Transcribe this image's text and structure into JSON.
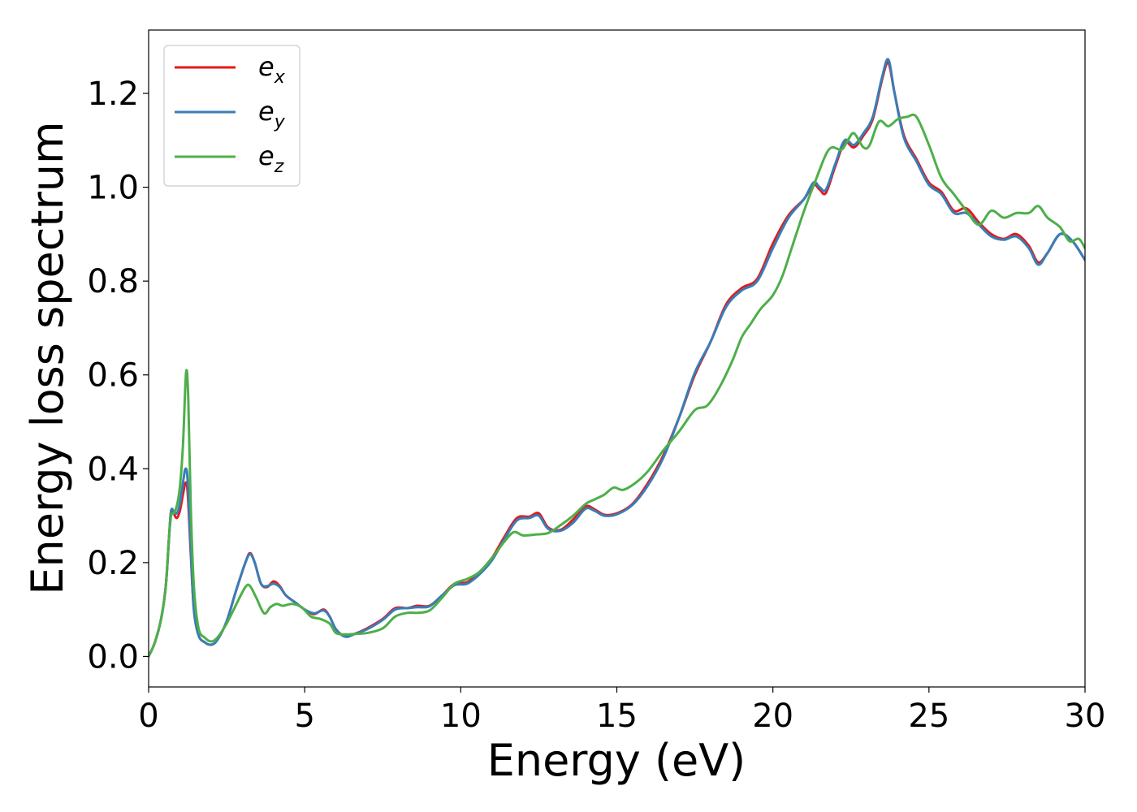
{
  "chart_data": {
    "type": "line",
    "title": "",
    "xlabel": "Energy (eV)",
    "ylabel": "Energy loss spectrum",
    "xlim": [
      0,
      30
    ],
    "ylim": [
      -0.065,
      1.335
    ],
    "xticks": [
      0,
      5,
      10,
      15,
      20,
      25,
      30
    ],
    "xtick_labels": [
      "0",
      "5",
      "10",
      "15",
      "20",
      "25",
      "30"
    ],
    "yticks": [
      0.0,
      0.2,
      0.4,
      0.6,
      0.8,
      1.0,
      1.2
    ],
    "ytick_labels": [
      "0.0",
      "0.2",
      "0.4",
      "0.6",
      "0.8",
      "1.0",
      "1.2"
    ],
    "grid": false,
    "legend_position": "top-left",
    "series": [
      {
        "name": "e_x",
        "legend_base": "e",
        "legend_sub": "x",
        "color": "#e41a1c",
        "points": [
          [
            0.0,
            0.0
          ],
          [
            0.2,
            0.03
          ],
          [
            0.4,
            0.08
          ],
          [
            0.55,
            0.15
          ],
          [
            0.65,
            0.25
          ],
          [
            0.72,
            0.31
          ],
          [
            0.8,
            0.305
          ],
          [
            0.9,
            0.295
          ],
          [
            1.0,
            0.31
          ],
          [
            1.1,
            0.345
          ],
          [
            1.18,
            0.37
          ],
          [
            1.25,
            0.35
          ],
          [
            1.35,
            0.22
          ],
          [
            1.45,
            0.1
          ],
          [
            1.6,
            0.045
          ],
          [
            1.8,
            0.03
          ],
          [
            2.0,
            0.025
          ],
          [
            2.2,
            0.035
          ],
          [
            2.5,
            0.075
          ],
          [
            2.8,
            0.14
          ],
          [
            3.1,
            0.2
          ],
          [
            3.25,
            0.22
          ],
          [
            3.4,
            0.2
          ],
          [
            3.6,
            0.155
          ],
          [
            3.8,
            0.148
          ],
          [
            4.0,
            0.16
          ],
          [
            4.2,
            0.15
          ],
          [
            4.4,
            0.13
          ],
          [
            4.7,
            0.115
          ],
          [
            5.0,
            0.1
          ],
          [
            5.3,
            0.09
          ],
          [
            5.6,
            0.1
          ],
          [
            5.8,
            0.085
          ],
          [
            6.0,
            0.058
          ],
          [
            6.3,
            0.043
          ],
          [
            6.6,
            0.048
          ],
          [
            7.0,
            0.06
          ],
          [
            7.5,
            0.08
          ],
          [
            7.9,
            0.103
          ],
          [
            8.3,
            0.103
          ],
          [
            8.6,
            0.108
          ],
          [
            9.0,
            0.108
          ],
          [
            9.4,
            0.13
          ],
          [
            9.8,
            0.155
          ],
          [
            10.2,
            0.158
          ],
          [
            10.6,
            0.18
          ],
          [
            11.0,
            0.21
          ],
          [
            11.4,
            0.255
          ],
          [
            11.8,
            0.295
          ],
          [
            12.2,
            0.298
          ],
          [
            12.5,
            0.305
          ],
          [
            12.8,
            0.275
          ],
          [
            13.2,
            0.27
          ],
          [
            13.6,
            0.292
          ],
          [
            14.0,
            0.32
          ],
          [
            14.3,
            0.313
          ],
          [
            14.6,
            0.302
          ],
          [
            15.0,
            0.305
          ],
          [
            15.5,
            0.325
          ],
          [
            16.0,
            0.37
          ],
          [
            16.5,
            0.43
          ],
          [
            17.0,
            0.51
          ],
          [
            17.5,
            0.6
          ],
          [
            18.0,
            0.67
          ],
          [
            18.5,
            0.75
          ],
          [
            19.0,
            0.785
          ],
          [
            19.5,
            0.805
          ],
          [
            20.0,
            0.88
          ],
          [
            20.5,
            0.94
          ],
          [
            21.0,
            0.975
          ],
          [
            21.3,
            1.005
          ],
          [
            21.5,
            0.995
          ],
          [
            21.7,
            0.988
          ],
          [
            22.0,
            1.045
          ],
          [
            22.3,
            1.095
          ],
          [
            22.6,
            1.085
          ],
          [
            22.9,
            1.11
          ],
          [
            23.2,
            1.145
          ],
          [
            23.5,
            1.23
          ],
          [
            23.7,
            1.265
          ],
          [
            23.9,
            1.2
          ],
          [
            24.2,
            1.11
          ],
          [
            24.6,
            1.06
          ],
          [
            25.0,
            1.01
          ],
          [
            25.4,
            0.99
          ],
          [
            25.8,
            0.95
          ],
          [
            26.2,
            0.955
          ],
          [
            26.6,
            0.925
          ],
          [
            27.0,
            0.9
          ],
          [
            27.4,
            0.89
          ],
          [
            27.8,
            0.9
          ],
          [
            28.2,
            0.875
          ],
          [
            28.5,
            0.84
          ],
          [
            28.8,
            0.86
          ],
          [
            29.2,
            0.9
          ],
          [
            29.6,
            0.885
          ],
          [
            30.0,
            0.845
          ]
        ]
      },
      {
        "name": "e_y",
        "legend_base": "e",
        "legend_sub": "y",
        "color": "#377eb8",
        "points": [
          [
            0.0,
            0.0
          ],
          [
            0.2,
            0.03
          ],
          [
            0.4,
            0.08
          ],
          [
            0.55,
            0.15
          ],
          [
            0.65,
            0.25
          ],
          [
            0.72,
            0.31
          ],
          [
            0.8,
            0.31
          ],
          [
            0.9,
            0.305
          ],
          [
            1.0,
            0.325
          ],
          [
            1.1,
            0.37
          ],
          [
            1.18,
            0.4
          ],
          [
            1.25,
            0.375
          ],
          [
            1.35,
            0.23
          ],
          [
            1.45,
            0.1
          ],
          [
            1.6,
            0.045
          ],
          [
            1.8,
            0.03
          ],
          [
            2.0,
            0.025
          ],
          [
            2.2,
            0.035
          ],
          [
            2.5,
            0.075
          ],
          [
            2.8,
            0.14
          ],
          [
            3.1,
            0.2
          ],
          [
            3.25,
            0.218
          ],
          [
            3.4,
            0.2
          ],
          [
            3.6,
            0.155
          ],
          [
            3.8,
            0.15
          ],
          [
            4.0,
            0.155
          ],
          [
            4.2,
            0.148
          ],
          [
            4.4,
            0.13
          ],
          [
            4.7,
            0.115
          ],
          [
            5.0,
            0.1
          ],
          [
            5.3,
            0.092
          ],
          [
            5.6,
            0.098
          ],
          [
            5.8,
            0.085
          ],
          [
            6.0,
            0.058
          ],
          [
            6.3,
            0.042
          ],
          [
            6.6,
            0.048
          ],
          [
            7.0,
            0.058
          ],
          [
            7.5,
            0.078
          ],
          [
            7.9,
            0.1
          ],
          [
            8.3,
            0.103
          ],
          [
            8.6,
            0.105
          ],
          [
            9.0,
            0.107
          ],
          [
            9.4,
            0.13
          ],
          [
            9.8,
            0.152
          ],
          [
            10.2,
            0.155
          ],
          [
            10.6,
            0.175
          ],
          [
            11.0,
            0.205
          ],
          [
            11.4,
            0.25
          ],
          [
            11.8,
            0.29
          ],
          [
            12.2,
            0.295
          ],
          [
            12.5,
            0.3
          ],
          [
            12.8,
            0.272
          ],
          [
            13.2,
            0.268
          ],
          [
            13.6,
            0.285
          ],
          [
            14.0,
            0.315
          ],
          [
            14.3,
            0.31
          ],
          [
            14.6,
            0.3
          ],
          [
            15.0,
            0.303
          ],
          [
            15.5,
            0.323
          ],
          [
            16.0,
            0.365
          ],
          [
            16.5,
            0.425
          ],
          [
            17.0,
            0.51
          ],
          [
            17.5,
            0.605
          ],
          [
            18.0,
            0.67
          ],
          [
            18.5,
            0.745
          ],
          [
            19.0,
            0.78
          ],
          [
            19.5,
            0.8
          ],
          [
            20.0,
            0.87
          ],
          [
            20.5,
            0.935
          ],
          [
            21.0,
            0.975
          ],
          [
            21.3,
            1.01
          ],
          [
            21.5,
            1.0
          ],
          [
            21.7,
            0.995
          ],
          [
            22.0,
            1.05
          ],
          [
            22.3,
            1.1
          ],
          [
            22.6,
            1.09
          ],
          [
            22.9,
            1.115
          ],
          [
            23.2,
            1.15
          ],
          [
            23.5,
            1.235
          ],
          [
            23.7,
            1.272
          ],
          [
            23.9,
            1.2
          ],
          [
            24.2,
            1.105
          ],
          [
            24.6,
            1.055
          ],
          [
            25.0,
            1.005
          ],
          [
            25.4,
            0.985
          ],
          [
            25.8,
            0.945
          ],
          [
            26.2,
            0.945
          ],
          [
            26.6,
            0.92
          ],
          [
            27.0,
            0.895
          ],
          [
            27.4,
            0.888
          ],
          [
            27.8,
            0.895
          ],
          [
            28.2,
            0.87
          ],
          [
            28.5,
            0.835
          ],
          [
            28.8,
            0.86
          ],
          [
            29.2,
            0.9
          ],
          [
            29.6,
            0.885
          ],
          [
            30.0,
            0.845
          ]
        ]
      },
      {
        "name": "e_z",
        "legend_base": "e",
        "legend_sub": "z",
        "color": "#4daf4a",
        "points": [
          [
            0.0,
            0.0
          ],
          [
            0.2,
            0.03
          ],
          [
            0.4,
            0.08
          ],
          [
            0.55,
            0.15
          ],
          [
            0.65,
            0.25
          ],
          [
            0.72,
            0.3
          ],
          [
            0.8,
            0.305
          ],
          [
            0.9,
            0.32
          ],
          [
            1.0,
            0.36
          ],
          [
            1.1,
            0.45
          ],
          [
            1.2,
            0.605
          ],
          [
            1.27,
            0.55
          ],
          [
            1.35,
            0.32
          ],
          [
            1.45,
            0.15
          ],
          [
            1.6,
            0.06
          ],
          [
            1.8,
            0.04
          ],
          [
            2.0,
            0.032
          ],
          [
            2.2,
            0.04
          ],
          [
            2.5,
            0.07
          ],
          [
            2.8,
            0.11
          ],
          [
            3.1,
            0.148
          ],
          [
            3.25,
            0.15
          ],
          [
            3.45,
            0.125
          ],
          [
            3.7,
            0.092
          ],
          [
            3.9,
            0.105
          ],
          [
            4.1,
            0.112
          ],
          [
            4.3,
            0.108
          ],
          [
            4.6,
            0.112
          ],
          [
            4.9,
            0.105
          ],
          [
            5.2,
            0.085
          ],
          [
            5.5,
            0.08
          ],
          [
            5.8,
            0.07
          ],
          [
            6.0,
            0.05
          ],
          [
            6.3,
            0.047
          ],
          [
            6.6,
            0.048
          ],
          [
            7.0,
            0.05
          ],
          [
            7.5,
            0.06
          ],
          [
            7.9,
            0.085
          ],
          [
            8.3,
            0.093
          ],
          [
            8.6,
            0.093
          ],
          [
            9.0,
            0.098
          ],
          [
            9.4,
            0.125
          ],
          [
            9.8,
            0.155
          ],
          [
            10.2,
            0.165
          ],
          [
            10.6,
            0.18
          ],
          [
            11.0,
            0.21
          ],
          [
            11.4,
            0.245
          ],
          [
            11.7,
            0.265
          ],
          [
            12.0,
            0.258
          ],
          [
            12.4,
            0.26
          ],
          [
            12.8,
            0.263
          ],
          [
            13.2,
            0.28
          ],
          [
            13.6,
            0.3
          ],
          [
            14.0,
            0.325
          ],
          [
            14.3,
            0.335
          ],
          [
            14.6,
            0.345
          ],
          [
            14.9,
            0.36
          ],
          [
            15.2,
            0.355
          ],
          [
            15.6,
            0.37
          ],
          [
            16.0,
            0.395
          ],
          [
            16.5,
            0.44
          ],
          [
            17.0,
            0.48
          ],
          [
            17.5,
            0.525
          ],
          [
            17.9,
            0.535
          ],
          [
            18.3,
            0.575
          ],
          [
            18.7,
            0.63
          ],
          [
            19.0,
            0.68
          ],
          [
            19.3,
            0.71
          ],
          [
            19.6,
            0.74
          ],
          [
            20.0,
            0.77
          ],
          [
            20.3,
            0.81
          ],
          [
            20.6,
            0.87
          ],
          [
            21.0,
            0.95
          ],
          [
            21.4,
            1.02
          ],
          [
            21.7,
            1.07
          ],
          [
            21.9,
            1.085
          ],
          [
            22.2,
            1.08
          ],
          [
            22.4,
            1.1
          ],
          [
            22.6,
            1.115
          ],
          [
            22.9,
            1.085
          ],
          [
            23.1,
            1.09
          ],
          [
            23.4,
            1.14
          ],
          [
            23.7,
            1.13
          ],
          [
            24.0,
            1.145
          ],
          [
            24.3,
            1.15
          ],
          [
            24.6,
            1.15
          ],
          [
            25.0,
            1.09
          ],
          [
            25.4,
            1.02
          ],
          [
            25.8,
            0.985
          ],
          [
            26.2,
            0.95
          ],
          [
            26.6,
            0.92
          ],
          [
            27.0,
            0.95
          ],
          [
            27.4,
            0.935
          ],
          [
            27.8,
            0.945
          ],
          [
            28.2,
            0.945
          ],
          [
            28.5,
            0.96
          ],
          [
            28.8,
            0.935
          ],
          [
            29.2,
            0.915
          ],
          [
            29.5,
            0.885
          ],
          [
            29.8,
            0.89
          ],
          [
            30.0,
            0.87
          ]
        ]
      }
    ]
  }
}
